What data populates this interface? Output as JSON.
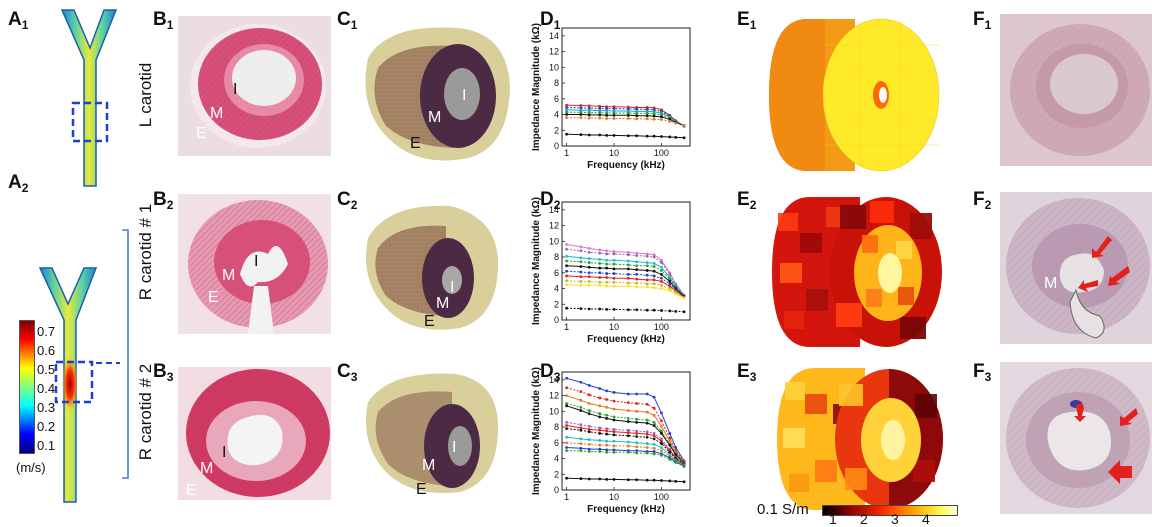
{
  "panels": {
    "A1": {
      "letter": "A",
      "index": "1"
    },
    "A2": {
      "letter": "A",
      "index": "2"
    },
    "B1": {
      "letter": "B",
      "index": "1"
    },
    "B2": {
      "letter": "B",
      "index": "2"
    },
    "B3": {
      "letter": "B",
      "index": "3"
    },
    "C1": {
      "letter": "C",
      "index": "1"
    },
    "C2": {
      "letter": "C",
      "index": "2"
    },
    "C3": {
      "letter": "C",
      "index": "3"
    },
    "D1": {
      "letter": "D",
      "index": "1"
    },
    "D2": {
      "letter": "D",
      "index": "2"
    },
    "D3": {
      "letter": "D",
      "index": "3"
    },
    "E1": {
      "letter": "E",
      "index": "1"
    },
    "E2": {
      "letter": "E",
      "index": "2"
    },
    "E3": {
      "letter": "E",
      "index": "3"
    },
    "F1": {
      "letter": "F",
      "index": "1"
    },
    "F2": {
      "letter": "F",
      "index": "2"
    },
    "F3": {
      "letter": "F",
      "index": "3"
    }
  },
  "rows": {
    "row1": "L carotid",
    "row2": "R carotid  # 1",
    "row3": "R carotid  # 2"
  },
  "tissue_labels": {
    "intima": "I",
    "media": "M",
    "externa": "E"
  },
  "velocity_scale": {
    "unit": "(m/s)",
    "ticks": [
      "0.7",
      "0.6",
      "0.5",
      "0.4",
      "0.3",
      "0.2",
      "0.1"
    ]
  },
  "conductivity_scale": {
    "unit": "0.1 S/m",
    "ticks": [
      "1",
      "2",
      "3",
      "4"
    ]
  },
  "colors": {
    "histology_pink": "#d6507a",
    "roi_box": "#1f3fd1",
    "arrow_red": "#e3201b",
    "bracket": "#4a7fc9"
  },
  "chart_data": [
    {
      "type": "line",
      "panel": "D1",
      "xlabel": "Frequency (kHz)",
      "ylabel": "Impedance Magnitude (kΩ)",
      "xscale": "log",
      "xlim": [
        0.8,
        400
      ],
      "ylim": [
        0,
        15
      ],
      "yticks": [
        "0",
        "2",
        "4",
        "6",
        "8",
        "10",
        "12",
        "14"
      ],
      "xticks": [
        "1",
        "10",
        "100"
      ],
      "x": [
        1,
        2,
        3,
        5,
        7,
        10,
        20,
        30,
        50,
        70,
        100,
        150,
        200,
        300
      ],
      "series": [
        {
          "color": "#e3201b",
          "values": [
            5.2,
            5.15,
            5.1,
            5.05,
            5.0,
            5.0,
            4.95,
            4.9,
            4.9,
            4.85,
            4.6,
            3.9,
            3.2,
            2.5
          ]
        },
        {
          "color": "#1f3fd1",
          "values": [
            4.9,
            4.85,
            4.8,
            4.8,
            4.75,
            4.75,
            4.7,
            4.7,
            4.65,
            4.6,
            4.4,
            3.8,
            3.2,
            2.5
          ]
        },
        {
          "color": "#17a9d6",
          "values": [
            4.6,
            4.55,
            4.55,
            4.5,
            4.5,
            4.45,
            4.45,
            4.4,
            4.4,
            4.35,
            4.2,
            3.7,
            3.1,
            2.5
          ]
        },
        {
          "color": "#2ca02c",
          "values": [
            4.3,
            4.3,
            4.25,
            4.25,
            4.2,
            4.2,
            4.2,
            4.15,
            4.15,
            4.1,
            3.95,
            3.6,
            3.1,
            2.6
          ]
        },
        {
          "color": "#111111",
          "values": [
            4.0,
            4.0,
            3.95,
            3.95,
            3.9,
            3.9,
            3.9,
            3.85,
            3.85,
            3.8,
            3.7,
            3.4,
            3.0,
            2.6
          ]
        },
        {
          "color": "#e07b20",
          "values": [
            3.6,
            3.6,
            3.55,
            3.55,
            3.5,
            3.5,
            3.5,
            3.45,
            3.45,
            3.4,
            3.35,
            3.15,
            2.9,
            2.6
          ]
        },
        {
          "color": "#111111",
          "values": [
            1.5,
            1.45,
            1.4,
            1.4,
            1.35,
            1.35,
            1.3,
            1.3,
            1.25,
            1.25,
            1.2,
            1.15,
            1.1,
            1.05
          ]
        }
      ]
    },
    {
      "type": "line",
      "panel": "D2",
      "xlabel": "Frequency (kHz)",
      "ylabel": "Impedance Magnitude (kΩ)",
      "xscale": "log",
      "xlim": [
        0.8,
        400
      ],
      "ylim": [
        0,
        15
      ],
      "yticks": [
        "0",
        "2",
        "4",
        "6",
        "8",
        "10",
        "12",
        "14"
      ],
      "xticks": [
        "1",
        "10",
        "100"
      ],
      "x": [
        1,
        2,
        3,
        5,
        7,
        10,
        20,
        30,
        50,
        70,
        100,
        150,
        200,
        300
      ],
      "series": [
        {
          "color": "#e377c2",
          "values": [
            9.6,
            9.3,
            9.1,
            8.9,
            8.8,
            8.7,
            8.6,
            8.5,
            8.4,
            8.3,
            7.6,
            6.0,
            4.6,
            3.2
          ]
        },
        {
          "color": "#9467bd",
          "values": [
            9.0,
            8.8,
            8.6,
            8.5,
            8.4,
            8.4,
            8.3,
            8.2,
            8.1,
            8.0,
            7.3,
            5.8,
            4.5,
            3.1
          ]
        },
        {
          "color": "#17becf",
          "values": [
            8.1,
            7.9,
            7.8,
            7.7,
            7.6,
            7.6,
            7.5,
            7.4,
            7.3,
            7.2,
            6.7,
            5.4,
            4.3,
            3.1
          ]
        },
        {
          "color": "#2ca02c",
          "values": [
            7.5,
            7.4,
            7.3,
            7.2,
            7.1,
            7.1,
            7.0,
            6.9,
            6.9,
            6.8,
            6.3,
            5.2,
            4.2,
            3.0
          ]
        },
        {
          "color": "#111111",
          "values": [
            6.9,
            6.8,
            6.7,
            6.6,
            6.6,
            6.5,
            6.5,
            6.4,
            6.3,
            6.2,
            5.8,
            4.9,
            4.0,
            3.0
          ]
        },
        {
          "color": "#1f3fd1",
          "values": [
            6.2,
            6.1,
            6.0,
            6.0,
            5.9,
            5.9,
            5.8,
            5.8,
            5.7,
            5.6,
            5.3,
            4.6,
            3.8,
            2.9
          ]
        },
        {
          "color": "#e3201b",
          "values": [
            5.6,
            5.5,
            5.5,
            5.4,
            5.4,
            5.3,
            5.3,
            5.2,
            5.1,
            5.1,
            4.9,
            4.3,
            3.7,
            2.9
          ]
        },
        {
          "color": "#bcbd22",
          "values": [
            5.0,
            4.9,
            4.9,
            4.8,
            4.8,
            4.8,
            4.7,
            4.7,
            4.6,
            4.6,
            4.4,
            4.0,
            3.5,
            2.8
          ]
        },
        {
          "color": "#ffdd33",
          "values": [
            4.5,
            4.4,
            4.4,
            4.4,
            4.3,
            4.3,
            4.3,
            4.2,
            4.2,
            4.1,
            4.0,
            3.7,
            3.3,
            2.8
          ]
        },
        {
          "color": "#111111",
          "values": [
            1.5,
            1.45,
            1.4,
            1.4,
            1.35,
            1.35,
            1.3,
            1.3,
            1.25,
            1.25,
            1.2,
            1.15,
            1.1,
            1.05
          ]
        }
      ]
    },
    {
      "type": "line",
      "panel": "D3",
      "xlabel": "Frequency (kHz)",
      "ylabel": "Impedance Magnitude (kΩ)",
      "xscale": "log",
      "xlim": [
        0.8,
        400
      ],
      "ylim": [
        0,
        15
      ],
      "yticks": [
        "0",
        "2",
        "4",
        "6",
        "8",
        "10",
        "12",
        "14"
      ],
      "xticks": [
        "1",
        "10",
        "100"
      ],
      "x": [
        1,
        2,
        3,
        5,
        7,
        10,
        20,
        30,
        50,
        70,
        100,
        150,
        200,
        300
      ],
      "series": [
        {
          "color": "#1f3fd1",
          "values": [
            14.2,
            13.7,
            13.3,
            12.9,
            12.6,
            12.4,
            12.2,
            12.2,
            12.2,
            11.8,
            9.8,
            7.2,
            5.4,
            3.7
          ]
        },
        {
          "color": "#e3201b",
          "values": [
            13.0,
            12.5,
            12.1,
            11.7,
            11.5,
            11.3,
            11.1,
            11.0,
            10.9,
            10.4,
            8.8,
            6.6,
            5.0,
            3.6
          ]
        },
        {
          "color": "#e07b20",
          "values": [
            12.0,
            11.4,
            11.0,
            10.7,
            10.5,
            10.3,
            10.1,
            10.0,
            9.9,
            9.5,
            8.1,
            6.2,
            4.8,
            3.5
          ]
        },
        {
          "color": "#2ca02c",
          "values": [
            11.0,
            10.5,
            10.1,
            9.7,
            9.5,
            9.3,
            9.1,
            9.0,
            8.9,
            8.6,
            7.5,
            5.8,
            4.6,
            3.5
          ]
        },
        {
          "color": "#111111",
          "values": [
            10.7,
            10.1,
            9.7,
            9.3,
            9.1,
            8.9,
            8.7,
            8.6,
            8.5,
            8.2,
            7.2,
            5.7,
            4.5,
            3.4
          ]
        },
        {
          "color": "#9467bd",
          "values": [
            8.6,
            8.3,
            8.1,
            7.9,
            7.8,
            7.7,
            7.6,
            7.5,
            7.4,
            7.2,
            6.5,
            5.2,
            4.2,
            3.3
          ]
        },
        {
          "color": "#e3201b",
          "values": [
            8.2,
            7.9,
            7.7,
            7.6,
            7.5,
            7.4,
            7.3,
            7.2,
            7.1,
            6.9,
            6.2,
            5.0,
            4.1,
            3.2
          ]
        },
        {
          "color": "#111111",
          "values": [
            7.8,
            7.6,
            7.4,
            7.2,
            7.1,
            7.0,
            6.9,
            6.8,
            6.7,
            6.5,
            5.9,
            4.8,
            4.0,
            3.2
          ]
        },
        {
          "color": "#17becf",
          "values": [
            6.7,
            6.5,
            6.4,
            6.3,
            6.2,
            6.2,
            6.1,
            6.0,
            5.9,
            5.8,
            5.4,
            4.5,
            3.8,
            3.1
          ]
        },
        {
          "color": "#e07b20",
          "values": [
            6.0,
            5.9,
            5.8,
            5.7,
            5.7,
            5.6,
            5.6,
            5.5,
            5.4,
            5.3,
            5.0,
            4.3,
            3.7,
            3.1
          ]
        },
        {
          "color": "#1f3fd1",
          "values": [
            5.4,
            5.3,
            5.2,
            5.2,
            5.1,
            5.1,
            5.0,
            5.0,
            4.9,
            4.9,
            4.6,
            4.1,
            3.6,
            3.0
          ]
        },
        {
          "color": "#2ca02c",
          "values": [
            5.0,
            5.0,
            4.9,
            4.9,
            4.8,
            4.8,
            4.8,
            4.7,
            4.7,
            4.6,
            4.4,
            3.9,
            3.5,
            3.0
          ]
        },
        {
          "color": "#111111",
          "values": [
            1.5,
            1.45,
            1.4,
            1.4,
            1.35,
            1.35,
            1.3,
            1.3,
            1.25,
            1.25,
            1.2,
            1.15,
            1.1,
            1.05
          ]
        }
      ]
    }
  ]
}
